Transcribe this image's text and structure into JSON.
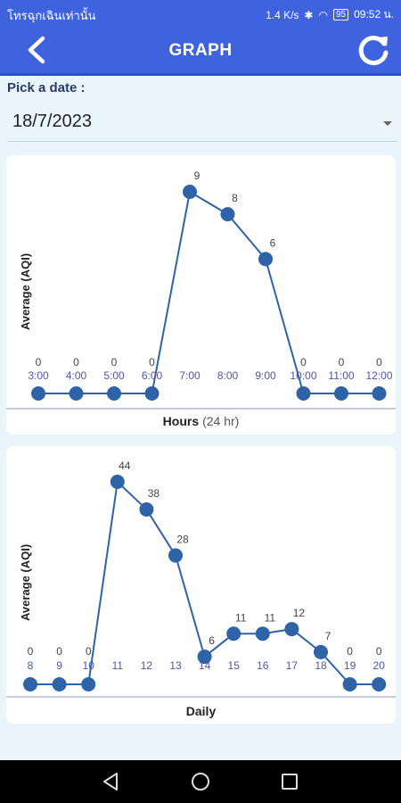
{
  "status": {
    "carrier": "โทรฉุกเฉินเท่านั้น",
    "speed": "1.4 K/s",
    "battery": "95",
    "time": "09:52 น."
  },
  "header": {
    "title": "GRAPH"
  },
  "date_picker": {
    "label": "Pick a date :",
    "value": "18/7/2023"
  },
  "chart_data": [
    {
      "type": "line",
      "ylabel": "Average (AQI)",
      "xlabel": "Hours",
      "xlabel_note": "(24 hr)",
      "categories": [
        "3:00",
        "4:00",
        "5:00",
        "6:00",
        "7:00",
        "8:00",
        "9:00",
        "10:00",
        "11:00",
        "12:00"
      ],
      "values": [
        0,
        0,
        0,
        0,
        9,
        8,
        6,
        0,
        0,
        0
      ],
      "line_color": "#2f63a8"
    },
    {
      "type": "line",
      "ylabel": "Average (AQI)",
      "xlabel": "Daily",
      "categories": [
        "8",
        "9",
        "10",
        "11",
        "12",
        "13",
        "14",
        "15",
        "16",
        "17",
        "18",
        "19",
        "20"
      ],
      "values": [
        0,
        0,
        0,
        44,
        38,
        28,
        6,
        11,
        11,
        12,
        7,
        0,
        0
      ],
      "line_color": "#2f63a8"
    }
  ]
}
